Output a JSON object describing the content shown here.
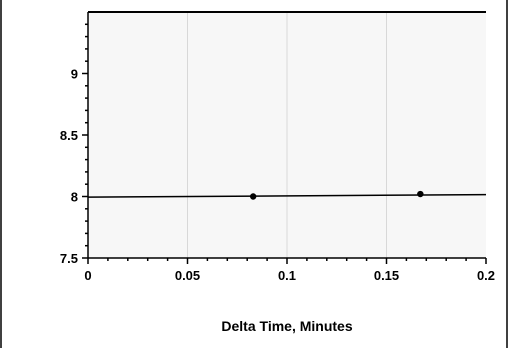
{
  "chart_data": {
    "type": "line",
    "title": "",
    "xlabel": "Delta Time, Minutes",
    "ylabel": "",
    "xlim": [
      0,
      0.2
    ],
    "ylim": [
      7.5,
      9.5
    ],
    "x_ticks": [
      "0",
      "0.05",
      "0.1",
      "0.15",
      "0.2"
    ],
    "y_ticks": [
      "7.5",
      "8",
      "8.5",
      "9"
    ],
    "grid": "vertical",
    "series": [
      {
        "x": [
          0,
          0.083,
          0.167
        ],
        "y": [
          8.0,
          8.0,
          8.02
        ],
        "markers": true
      }
    ],
    "trendline": {
      "x": [
        0,
        0.2
      ],
      "y": [
        7.995,
        8.015
      ]
    },
    "colors": {
      "plot_background": "#f7f7f7",
      "line": "#000000",
      "grid": "#d8d8d8"
    }
  }
}
